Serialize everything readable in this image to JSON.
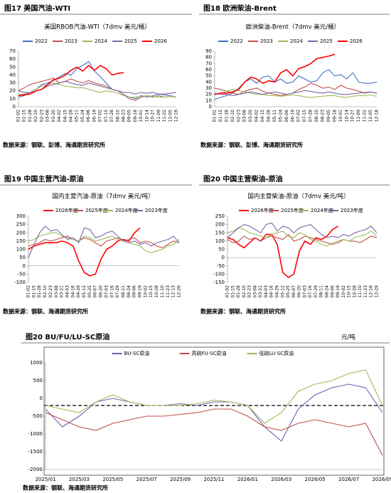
{
  "chart_data": [
    {
      "type": "line",
      "caption": "图17 美国汽油-WTI",
      "title": "美国RBOB汽油-WTI（7dmv 美元/桶）",
      "source": "数据来源：钢联、彭博、海通期货研究所",
      "categories": [
        "01-02",
        "01-15",
        "01-28",
        "02-10",
        "02-23",
        "03-08",
        "03-20",
        "04-02",
        "04-15",
        "04-28",
        "05-11",
        "05-24",
        "06-06",
        "06-19",
        "07-02",
        "07-15",
        "07-28",
        "08-10",
        "08-23",
        "09-05",
        "09-18",
        "10-01",
        "10-14",
        "10-27",
        "11-09",
        "11-22",
        "12-05",
        "12-19"
      ],
      "ylim": [
        0,
        70
      ],
      "yticks": [
        0,
        10,
        20,
        30,
        40,
        50,
        60,
        70
      ],
      "series": [
        {
          "name": "2022",
          "color": "#4472c4",
          "values": [
            12,
            14,
            18,
            22,
            28,
            30,
            33,
            38,
            42,
            40,
            48,
            52,
            57,
            45,
            38,
            30,
            22,
            20,
            15,
            12,
            10,
            14,
            12,
            14,
            16,
            15,
            14,
            12
          ]
        },
        {
          "name": "2023",
          "color": "#c0504d",
          "values": [
            20,
            24,
            28,
            30,
            32,
            34,
            36,
            30,
            32,
            35,
            32,
            30,
            33,
            30,
            28,
            26,
            22,
            20,
            15,
            10,
            8,
            12,
            14,
            12,
            14,
            12,
            13,
            12
          ]
        },
        {
          "name": "2024",
          "color": "#9bbb59",
          "values": [
            15,
            16,
            18,
            22,
            26,
            28,
            30,
            28,
            26,
            25,
            24,
            24,
            22,
            20,
            18,
            20,
            19,
            17,
            14,
            12,
            12,
            13,
            14,
            13,
            12,
            12,
            13,
            12
          ]
        },
        {
          "name": "2025",
          "color": "#8064a2",
          "values": [
            20,
            18,
            18,
            20,
            22,
            26,
            28,
            30,
            32,
            30,
            28,
            27,
            30,
            28,
            26,
            24,
            22,
            20,
            18,
            18,
            16,
            18,
            17,
            18,
            16,
            16,
            17,
            18
          ]
        },
        {
          "name": "2026",
          "color": "#ff0000",
          "values": [
            14,
            15,
            16,
            20,
            22,
            28,
            34,
            36,
            40,
            46,
            50,
            45,
            52,
            46,
            52,
            48,
            40,
            42,
            43,
            null,
            null,
            null,
            null,
            null,
            null,
            null,
            null,
            null
          ]
        }
      ]
    },
    {
      "type": "line",
      "caption": "图18 欧洲柴油-Brent",
      "title": "欧洲柴油-Brent（7dmv 美元/桶）",
      "source": "数据来源：钢联、彭博、海通期货研究所",
      "categories": [
        "01-02",
        "01-15",
        "01-28",
        "02-10",
        "02-23",
        "03-08",
        "03-20",
        "04-02",
        "04-15",
        "04-28",
        "05-11",
        "05-24",
        "06-06",
        "06-19",
        "07-02",
        "07-15",
        "07-28",
        "08-10",
        "08-23",
        "09-05",
        "09-18",
        "10-01",
        "10-14",
        "10-27",
        "11-09",
        "11-22",
        "12-05",
        "12-18"
      ],
      "ylim": [
        0,
        90
      ],
      "yticks": [
        0,
        10,
        20,
        30,
        40,
        50,
        60,
        70,
        80,
        90
      ],
      "series": [
        {
          "name": "2022",
          "color": "#4472c4",
          "values": [
            12,
            15,
            18,
            22,
            30,
            40,
            45,
            38,
            48,
            50,
            40,
            45,
            38,
            40,
            50,
            45,
            40,
            42,
            55,
            60,
            50,
            52,
            45,
            55,
            40,
            38,
            38,
            40
          ]
        },
        {
          "name": "2023",
          "color": "#c0504d",
          "values": [
            30,
            28,
            25,
            22,
            20,
            25,
            28,
            30,
            25,
            22,
            20,
            18,
            20,
            22,
            28,
            32,
            38,
            35,
            30,
            32,
            28,
            35,
            30,
            28,
            25,
            22,
            24,
            22
          ]
        },
        {
          "name": "2024",
          "color": "#9bbb59",
          "values": [
            20,
            22,
            25,
            28,
            26,
            24,
            22,
            20,
            20,
            18,
            18,
            17,
            18,
            19,
            18,
            16,
            15,
            16,
            17,
            18,
            18,
            16,
            15,
            17,
            18,
            18,
            19,
            17
          ]
        },
        {
          "name": "2025",
          "color": "#8064a2",
          "values": [
            22,
            20,
            20,
            18,
            20,
            22,
            24,
            22,
            20,
            22,
            24,
            22,
            20,
            22,
            24,
            26,
            25,
            23,
            22,
            24,
            22,
            20,
            20,
            21,
            22,
            23,
            24,
            22
          ]
        },
        {
          "name": "2026",
          "color": "#ff0000",
          "values": [
            20,
            22,
            22,
            24,
            28,
            40,
            48,
            45,
            38,
            42,
            40,
            55,
            60,
            50,
            62,
            65,
            70,
            78,
            80,
            82,
            85,
            null,
            null,
            null,
            null,
            null,
            null,
            null
          ]
        }
      ]
    },
    {
      "type": "line",
      "caption": "图19 中国主营汽油-原油",
      "title": "国内主营汽油-原油（7dmv 美元/吨）",
      "source": "数据来源：钢联、海通期货研究所",
      "categories": [
        "01-02",
        "01-15",
        "01-28",
        "02-10",
        "02-23",
        "03-08",
        "03-21",
        "04-03",
        "04-16",
        "04-29",
        "05-12",
        "05-25",
        "06-07",
        "06-20",
        "07-03",
        "07-16",
        "07-29",
        "08-11",
        "08-24",
        "09-06",
        "09-19",
        "10-02",
        "10-15",
        "10-28",
        "11-10",
        "11-23",
        "12-13",
        "12-26"
      ],
      "ylim": [
        -100,
        300
      ],
      "yticks": [
        -100,
        -50,
        0,
        50,
        100,
        150,
        200,
        250,
        300
      ],
      "series": [
        {
          "name": "2026年度",
          "color": "#ff0000",
          "values": [
            100,
            120,
            130,
            140,
            140,
            140,
            150,
            140,
            120,
            30,
            -40,
            -60,
            -50,
            40,
            100,
            120,
            150,
            160,
            150,
            200,
            230,
            null,
            null,
            null,
            null,
            null,
            null,
            null
          ]
        },
        {
          "name": "2025年度",
          "color": "#c0504d",
          "values": [
            120,
            130,
            140,
            160,
            150,
            160,
            170,
            180,
            160,
            150,
            170,
            160,
            140,
            120,
            150,
            160,
            170,
            150,
            160,
            170,
            140,
            150,
            140,
            120,
            110,
            130,
            150,
            140
          ]
        },
        {
          "name": "2024年度",
          "color": "#9bbb59",
          "values": [
            150,
            160,
            180,
            190,
            200,
            200,
            180,
            170,
            160,
            150,
            180,
            170,
            150,
            160,
            170,
            180,
            160,
            150,
            140,
            130,
            120,
            90,
            80,
            90,
            100,
            120,
            130,
            160
          ]
        },
        {
          "name": "2023年度",
          "color": "#8064a2",
          "values": [
            50,
            130,
            200,
            240,
            210,
            220,
            190,
            160,
            170,
            140,
            230,
            220,
            170,
            180,
            200,
            210,
            180,
            150,
            140,
            150,
            130,
            140,
            120,
            140,
            150,
            160,
            180,
            140
          ]
        }
      ]
    },
    {
      "type": "line",
      "caption": "图20 中国主营柴油-原油",
      "title": "国内主营柴油-原油（7dmv 美元/吨）",
      "source": "数据来源：钢联、海通期货研究所",
      "categories": [
        "01-02",
        "01-15",
        "01-28",
        "02-10",
        "02-23",
        "03-08",
        "03-21",
        "04-03",
        "04-16",
        "04-29",
        "05-12",
        "05-25",
        "06-07",
        "06-20",
        "07-03",
        "07-16",
        "07-29",
        "08-11",
        "08-24",
        "09-06",
        "09-19",
        "10-02",
        "10-15",
        "10-28",
        "11-10",
        "11-23",
        "12-16",
        "12-29"
      ],
      "ylim": [
        -150,
        250
      ],
      "yticks": [
        -150,
        -100,
        -50,
        0,
        50,
        100,
        150,
        200,
        250
      ],
      "series": [
        {
          "name": "2026年度",
          "color": "#ff0000",
          "values": [
            120,
            110,
            80,
            60,
            90,
            120,
            100,
            140,
            140,
            80,
            -90,
            -120,
            -100,
            40,
            100,
            80,
            120,
            110,
            130,
            170,
            190,
            null,
            null,
            null,
            null,
            null,
            null,
            null
          ]
        },
        {
          "name": "2025年度",
          "color": "#c0504d",
          "values": [
            110,
            90,
            100,
            130,
            110,
            120,
            100,
            120,
            130,
            120,
            110,
            140,
            100,
            110,
            130,
            120,
            110,
            100,
            90,
            80,
            90,
            110,
            100,
            100,
            90,
            110,
            130,
            120
          ]
        },
        {
          "name": "2024年度",
          "color": "#9bbb59",
          "values": [
            150,
            160,
            180,
            170,
            150,
            140,
            130,
            120,
            140,
            150,
            160,
            130,
            120,
            150,
            140,
            110,
            100,
            80,
            70,
            90,
            100,
            110,
            100,
            120,
            130,
            140,
            160,
            130
          ]
        },
        {
          "name": "2023年度",
          "color": "#8064a2",
          "values": [
            120,
            150,
            180,
            200,
            190,
            170,
            150,
            200,
            210,
            160,
            190,
            180,
            150,
            180,
            190,
            200,
            170,
            140,
            120,
            130,
            120,
            140,
            130,
            150,
            160,
            170,
            190,
            150
          ]
        }
      ]
    },
    {
      "type": "line",
      "caption": "图20 BU/FU/LU-SC原油",
      "unit": "元/吨",
      "source": "数据来源：钢联、海通期货研究所",
      "categories": [
        "2025/01",
        null,
        "2025/03",
        null,
        "2025/05",
        null,
        "2025/07",
        null,
        "2025/09",
        null,
        "2025/11",
        null,
        "2026/01",
        null,
        "2026/03",
        null,
        "2026/05",
        null,
        "2026/07",
        null,
        "2026/09"
      ],
      "ylim": [
        -2000,
        1000
      ],
      "yticks": [
        -2000,
        -1500,
        -1000,
        -500,
        0,
        500,
        1000
      ],
      "reference_line": -200,
      "series": [
        {
          "name": "BU-SC原油",
          "color": "#7060b0",
          "values": [
            -300,
            -800,
            -500,
            -100,
            0,
            -100,
            -200,
            -200,
            -150,
            -200,
            -100,
            -100,
            -200,
            -800,
            -1200,
            -300,
            100,
            300,
            400,
            300,
            -400
          ]
        },
        {
          "name": "高硫FU-SC原油",
          "color": "#c0504d",
          "values": [
            -400,
            -600,
            -800,
            -900,
            -700,
            -600,
            -500,
            -500,
            -450,
            -400,
            -300,
            -300,
            -500,
            -800,
            -900,
            -700,
            -600,
            -700,
            -800,
            -700,
            -1600
          ]
        },
        {
          "name": "低硫LU-SC原油",
          "color": "#9bbb59",
          "values": [
            -200,
            -300,
            -400,
            -100,
            100,
            -100,
            -200,
            -200,
            -200,
            -150,
            -50,
            -100,
            -200,
            -700,
            -400,
            200,
            400,
            500,
            700,
            800,
            -200
          ]
        }
      ]
    }
  ]
}
